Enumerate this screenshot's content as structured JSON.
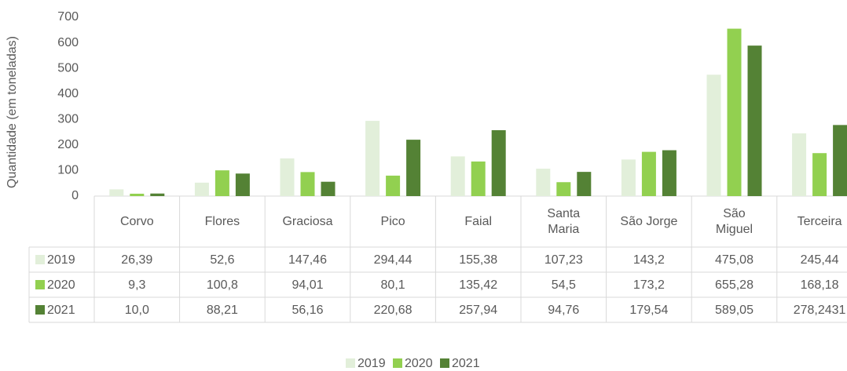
{
  "chart_data": {
    "type": "bar",
    "y_axis_label": "Quantidade (em toneladas)",
    "categories": [
      "Corvo",
      "Flores",
      "Graciosa",
      "Pico",
      "Faial",
      "Santa\nMaria",
      "São Jorge",
      "São\nMiguel",
      "Terceira"
    ],
    "series": [
      {
        "name": "2019",
        "color": "#e2efda",
        "values": [
          26.39,
          52.6,
          147.46,
          294.44,
          155.38,
          107.23,
          143.2,
          475.08,
          245.44
        ],
        "value_labels": [
          "26,39",
          "52,6",
          "147,46",
          "294,44",
          "155,38",
          "107,23",
          "143,2",
          "475,08",
          "245,44"
        ]
      },
      {
        "name": "2020",
        "color": "#92d050",
        "values": [
          9.3,
          100.8,
          94.01,
          80.1,
          135.42,
          54.5,
          173.2,
          655.28,
          168.18
        ],
        "value_labels": [
          "9,3",
          "100,8",
          "94,01",
          "80,1",
          "135,42",
          "54,5",
          "173,2",
          "655,28",
          "168,18"
        ]
      },
      {
        "name": "2021",
        "color": "#548235",
        "values": [
          10.0,
          88.21,
          56.16,
          220.68,
          257.94,
          94.76,
          179.54,
          589.05,
          278.2431
        ],
        "value_labels": [
          "10,0",
          "88,21",
          "56,16",
          "220,68",
          "257,94",
          "94,76",
          "179,54",
          "589,05",
          "278,2431"
        ]
      }
    ],
    "ylim": [
      0,
      700
    ],
    "yticks": [
      0,
      100,
      200,
      300,
      400,
      500,
      600,
      700
    ],
    "grid": false,
    "legend": "bottom"
  }
}
